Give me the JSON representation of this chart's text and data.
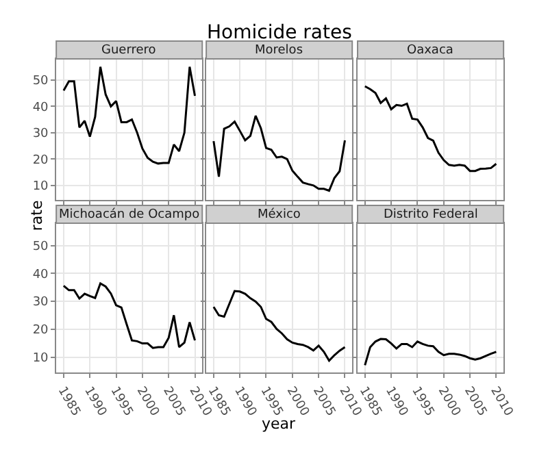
{
  "chart_data": [
    {
      "type": "line",
      "title": "Guerrero",
      "annotations": [
        "Homicide rates"
      ],
      "x": [
        1985,
        1986,
        1987,
        1988,
        1989,
        1990,
        1991,
        1992,
        1993,
        1994,
        1995,
        1996,
        1997,
        1998,
        1999,
        2000,
        2001,
        2002,
        2003,
        2004,
        2005,
        2006,
        2007,
        2008,
        2009,
        2010
      ],
      "series": [
        {
          "color": "#000000",
          "values": [
            46,
            49.5,
            49.5,
            32,
            34.5,
            28.5,
            36,
            55,
            44.5,
            40,
            42,
            34,
            34,
            35,
            30,
            24,
            20.5,
            19,
            18.3,
            18.5,
            18.5,
            25.5,
            23,
            30,
            55,
            44
          ]
        }
      ],
      "xlim": [
        1983.6,
        2011.4
      ],
      "ylim": [
        4.5,
        58
      ],
      "xticks": [
        1985,
        1990,
        1995,
        2000,
        2005,
        2010
      ],
      "yticks": [
        10,
        20,
        30,
        40,
        50
      ],
      "grid": true,
      "tick_labels": "y"
    },
    {
      "type": "line",
      "title": "Morelos",
      "x": [
        1985,
        1986,
        1987,
        1988,
        1989,
        1990,
        1991,
        1992,
        1993,
        1994,
        1995,
        1996,
        1997,
        1998,
        1999,
        2000,
        2001,
        2002,
        2003,
        2004,
        2005,
        2006,
        2007,
        2008,
        2009,
        2010
      ],
      "series": [
        {
          "color": "#000000",
          "values": [
            26.8,
            13.3,
            31.5,
            32.4,
            34.2,
            30.7,
            27.1,
            28.8,
            36.4,
            31.7,
            24.2,
            23.5,
            20.6,
            20.9,
            20,
            15.6,
            13.3,
            11.1,
            10.5,
            10,
            8.7,
            8.7,
            8,
            12.8,
            15.4,
            27.1
          ]
        }
      ],
      "xlim": [
        1983.6,
        2011.4
      ],
      "ylim": [
        4.5,
        58
      ],
      "xticks": [
        1985,
        1990,
        1995,
        2000,
        2005,
        2010
      ],
      "yticks": [
        10,
        20,
        30,
        40,
        50
      ],
      "grid": true,
      "tick_labels": false
    },
    {
      "type": "line",
      "title": "Oaxaca",
      "x": [
        1985,
        1986,
        1987,
        1988,
        1989,
        1990,
        1991,
        1992,
        1993,
        1994,
        1995,
        1996,
        1997,
        1998,
        1999,
        2000,
        2001,
        2002,
        2003,
        2004,
        2005,
        2006,
        2007,
        2008,
        2009,
        2010
      ],
      "series": [
        {
          "color": "#000000",
          "values": [
            47.6,
            46.5,
            45.1,
            41.3,
            43,
            38.9,
            40.5,
            40.2,
            41,
            35.3,
            35,
            32,
            28,
            27,
            22.4,
            19.6,
            17.8,
            17.5,
            17.8,
            17.5,
            15.5,
            15.5,
            16.3,
            16.4,
            16.6,
            18.2
          ]
        }
      ],
      "xlim": [
        1983.6,
        2011.4
      ],
      "ylim": [
        4.5,
        58
      ],
      "xticks": [
        1985,
        1990,
        1995,
        2000,
        2005,
        2010
      ],
      "yticks": [
        10,
        20,
        30,
        40,
        50
      ],
      "grid": true,
      "tick_labels": false
    },
    {
      "type": "line",
      "title": "Michoacán de Ocampo",
      "ylabel": "rate",
      "x": [
        1985,
        1986,
        1987,
        1988,
        1989,
        1990,
        1991,
        1992,
        1993,
        1994,
        1995,
        1996,
        1997,
        1998,
        1999,
        2000,
        2001,
        2002,
        2003,
        2004,
        2005,
        2006,
        2007,
        2008,
        2009,
        2010
      ],
      "series": [
        {
          "color": "#000000",
          "values": [
            35.6,
            34,
            34,
            31,
            32.7,
            31.9,
            31.2,
            36.4,
            35.3,
            32.8,
            28.6,
            27.8,
            21.8,
            16,
            15.7,
            14.9,
            14.9,
            13.3,
            13.6,
            13.6,
            16.9,
            25,
            13.6,
            15.2,
            22.5,
            16
          ]
        }
      ],
      "xlim": [
        1983.6,
        2011.4
      ],
      "ylim": [
        4.5,
        58
      ],
      "xticks": [
        1985,
        1990,
        1995,
        2000,
        2005,
        2010
      ],
      "yticks": [
        10,
        20,
        30,
        40,
        50
      ],
      "grid": true
    },
    {
      "type": "line",
      "title": "México",
      "xlabel": "year",
      "x": [
        1985,
        1986,
        1987,
        1988,
        1989,
        1990,
        1991,
        1992,
        1993,
        1994,
        1995,
        1996,
        1997,
        1998,
        1999,
        2000,
        2001,
        2002,
        2003,
        2004,
        2005,
        2006,
        2007,
        2008,
        2009,
        2010
      ],
      "series": [
        {
          "color": "#000000",
          "values": [
            28,
            25,
            24.5,
            29.1,
            33.7,
            33.5,
            32.7,
            31.1,
            29.9,
            28,
            23.7,
            22.6,
            20.1,
            18.5,
            16.4,
            15.2,
            14.7,
            14.4,
            13.6,
            12.4,
            14.1,
            11.9,
            8.7,
            10.7,
            12.3,
            13.6
          ]
        }
      ],
      "xlim": [
        1983.6,
        2011.4
      ],
      "ylim": [
        4.5,
        58
      ],
      "xticks": [
        1985,
        1990,
        1995,
        2000,
        2005,
        2010
      ],
      "yticks": [
        10,
        20,
        30,
        40,
        50
      ],
      "grid": true,
      "tick_labels": "x"
    },
    {
      "type": "line",
      "title": "Distrito Federal",
      "x": [
        1985,
        1986,
        1987,
        1988,
        1989,
        1990,
        1991,
        1992,
        1993,
        1994,
        1995,
        1996,
        1997,
        1998,
        1999,
        2000,
        2001,
        2002,
        2003,
        2004,
        2005,
        2006,
        2007,
        2008,
        2009,
        2010
      ],
      "series": [
        {
          "color": "#000000",
          "values": [
            7.1,
            13.6,
            15.6,
            16.5,
            16.4,
            14.9,
            13.1,
            14.7,
            14.7,
            13.6,
            15.6,
            14.7,
            14.1,
            13.9,
            11.9,
            10.7,
            11.2,
            11.2,
            10.9,
            10.4,
            9.6,
            9.1,
            9.6,
            10.4,
            11.2,
            11.9
          ]
        }
      ],
      "xlim": [
        1983.6,
        2011.4
      ],
      "ylim": [
        4.5,
        58
      ],
      "xticks": [
        1985,
        1990,
        1995,
        2000,
        2005,
        2010
      ],
      "yticks": [
        10,
        20,
        30,
        40,
        50
      ],
      "grid": true,
      "tick_labels": "x"
    }
  ]
}
